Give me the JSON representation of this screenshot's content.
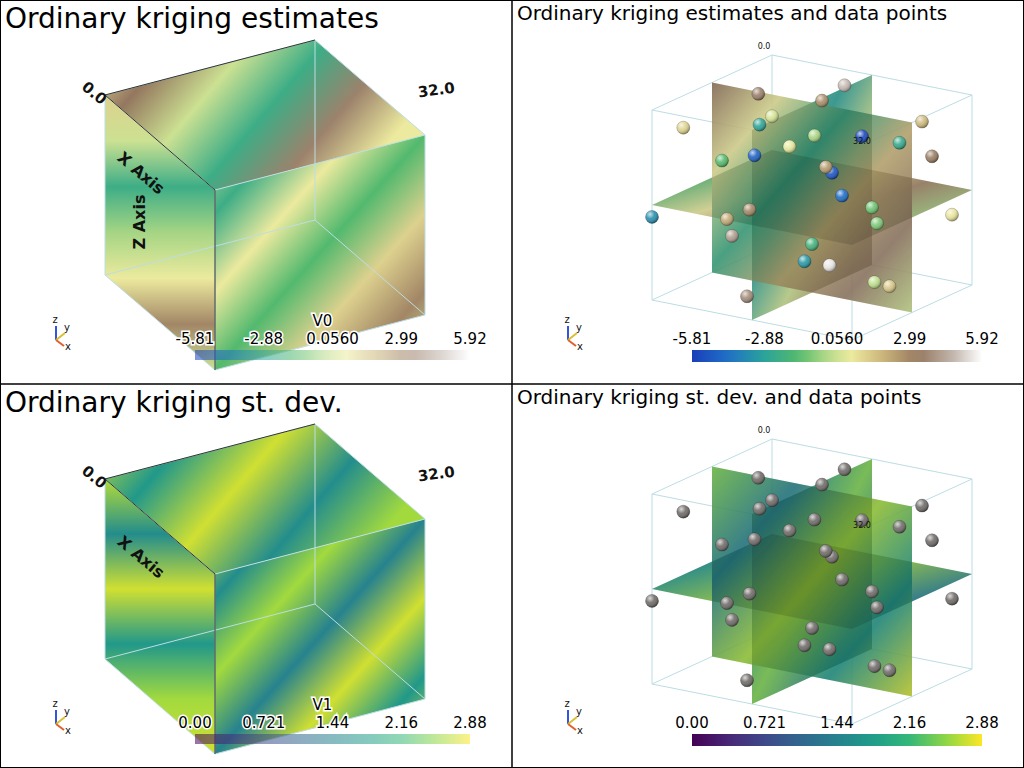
{
  "chart_data": [
    {
      "type": "volume",
      "title": "Ordinary kriging estimates",
      "color": "gist_earth",
      "colorbar": {
        "title": "V0",
        "range": [
          -5.81,
          5.92
        ],
        "ticks": [
          -5.81,
          -2.88,
          {
            "value": 0.056,
            "label": "0.0560"
          },
          2.99,
          5.92
        ]
      },
      "axes": {
        "x_title": "X Axis",
        "z_title": "Z Axis",
        "range": [
          0,
          32
        ],
        "ticks": [
          {
            "value": 0,
            "label": "0.0"
          },
          {
            "value": 32,
            "label": "32.0"
          }
        ]
      },
      "axis_triad": [
        "z",
        "y",
        "x"
      ]
    },
    {
      "type": "slices",
      "title": "Ordinary kriging estimates and data points",
      "color": "gist_earth",
      "colorbar": {
        "range": [
          -5.81,
          5.92
        ],
        "ticks": [
          -5.81,
          -2.88,
          {
            "value": 0.056,
            "label": "0.0560"
          },
          2.99,
          5.92
        ]
      },
      "axes": {
        "range": [
          0,
          32
        ],
        "ticks": [
          {
            "value": 0,
            "label": "0.0"
          },
          {
            "value": 32,
            "label": "32.0"
          }
        ]
      },
      "axis_triad": [
        "z",
        "y",
        "x"
      ],
      "points": [
        [
          2,
          5,
          28,
          1.2
        ],
        [
          5,
          20,
          30,
          3.5
        ],
        [
          10,
          2,
          25,
          -1.5
        ],
        [
          14,
          28,
          31,
          4.8
        ],
        [
          20,
          10,
          29,
          -0.5
        ],
        [
          26,
          3,
          27,
          2.5
        ],
        [
          30,
          22,
          30,
          1.8
        ],
        [
          8,
          14,
          22,
          -4.8
        ],
        [
          18,
          18,
          20,
          -5.2
        ],
        [
          24,
          26,
          24,
          -2.5
        ],
        [
          4,
          30,
          18,
          0.5
        ],
        [
          12,
          6,
          16,
          3.0
        ],
        [
          28,
          12,
          18,
          -1.2
        ],
        [
          16,
          24,
          14,
          -4.5
        ],
        [
          6,
          10,
          12,
          2.2
        ],
        [
          22,
          4,
          10,
          -3.2
        ],
        [
          30,
          30,
          12,
          0.8
        ],
        [
          2,
          18,
          6,
          4.2
        ],
        [
          10,
          26,
          4,
          -2.0
        ],
        [
          20,
          14,
          6,
          5.5
        ],
        [
          26,
          20,
          2,
          1.5
        ],
        [
          14,
          2,
          3,
          3.8
        ],
        [
          32,
          6,
          8,
          -0.2
        ],
        [
          0,
          0,
          14,
          -3.5
        ],
        [
          8,
          32,
          26,
          2.8
        ],
        [
          18,
          30,
          8,
          -1.0
        ],
        [
          24,
          16,
          28,
          -5.5
        ],
        [
          12,
          12,
          30,
          0.2
        ],
        [
          28,
          28,
          22,
          3.2
        ],
        [
          4,
          22,
          24,
          -2.8
        ]
      ]
    },
    {
      "type": "volume",
      "title": "Ordinary kriging st. dev.",
      "color": "viridis",
      "colorbar": {
        "title": "V1",
        "range": [
          0,
          2.88
        ],
        "ticks": [
          {
            "value": 0,
            "label": "0.00"
          },
          0.721,
          1.44,
          2.16,
          2.88
        ]
      },
      "axes": {
        "x_title": "X Axis",
        "range": [
          0,
          32
        ],
        "ticks": [
          {
            "value": 0,
            "label": "0.0"
          },
          {
            "value": 32,
            "label": "32.0"
          }
        ]
      },
      "axis_triad": [
        "z",
        "y",
        "x"
      ]
    },
    {
      "type": "slices",
      "title": "Ordinary kriging st. dev. and data points",
      "color": "viridis",
      "colorbar": {
        "range": [
          0,
          2.88
        ],
        "ticks": [
          {
            "value": 0,
            "label": "0.00"
          },
          0.721,
          1.44,
          2.16,
          2.88
        ]
      },
      "axes": {
        "range": [
          0,
          32
        ],
        "ticks": [
          {
            "value": 0,
            "label": "0.0"
          },
          {
            "value": 32,
            "label": "32.0"
          }
        ]
      },
      "axis_triad": [
        "z",
        "y",
        "x"
      ],
      "point_color": "#6e6a68",
      "points": [
        [
          2,
          5,
          28
        ],
        [
          5,
          20,
          30
        ],
        [
          10,
          2,
          25
        ],
        [
          14,
          28,
          31
        ],
        [
          20,
          10,
          29
        ],
        [
          26,
          3,
          27
        ],
        [
          30,
          22,
          30
        ],
        [
          8,
          14,
          22
        ],
        [
          18,
          18,
          20
        ],
        [
          24,
          26,
          24
        ],
        [
          4,
          30,
          18
        ],
        [
          12,
          6,
          16
        ],
        [
          28,
          12,
          18
        ],
        [
          16,
          24,
          14
        ],
        [
          6,
          10,
          12
        ],
        [
          22,
          4,
          10
        ],
        [
          30,
          30,
          12
        ],
        [
          2,
          18,
          6
        ],
        [
          10,
          26,
          4
        ],
        [
          20,
          14,
          6
        ],
        [
          26,
          20,
          2
        ],
        [
          14,
          2,
          3
        ],
        [
          32,
          6,
          8
        ],
        [
          0,
          0,
          14
        ],
        [
          8,
          32,
          26
        ],
        [
          18,
          30,
          8
        ],
        [
          24,
          16,
          28
        ],
        [
          12,
          12,
          30
        ],
        [
          28,
          28,
          22
        ],
        [
          4,
          22,
          24
        ]
      ]
    }
  ]
}
